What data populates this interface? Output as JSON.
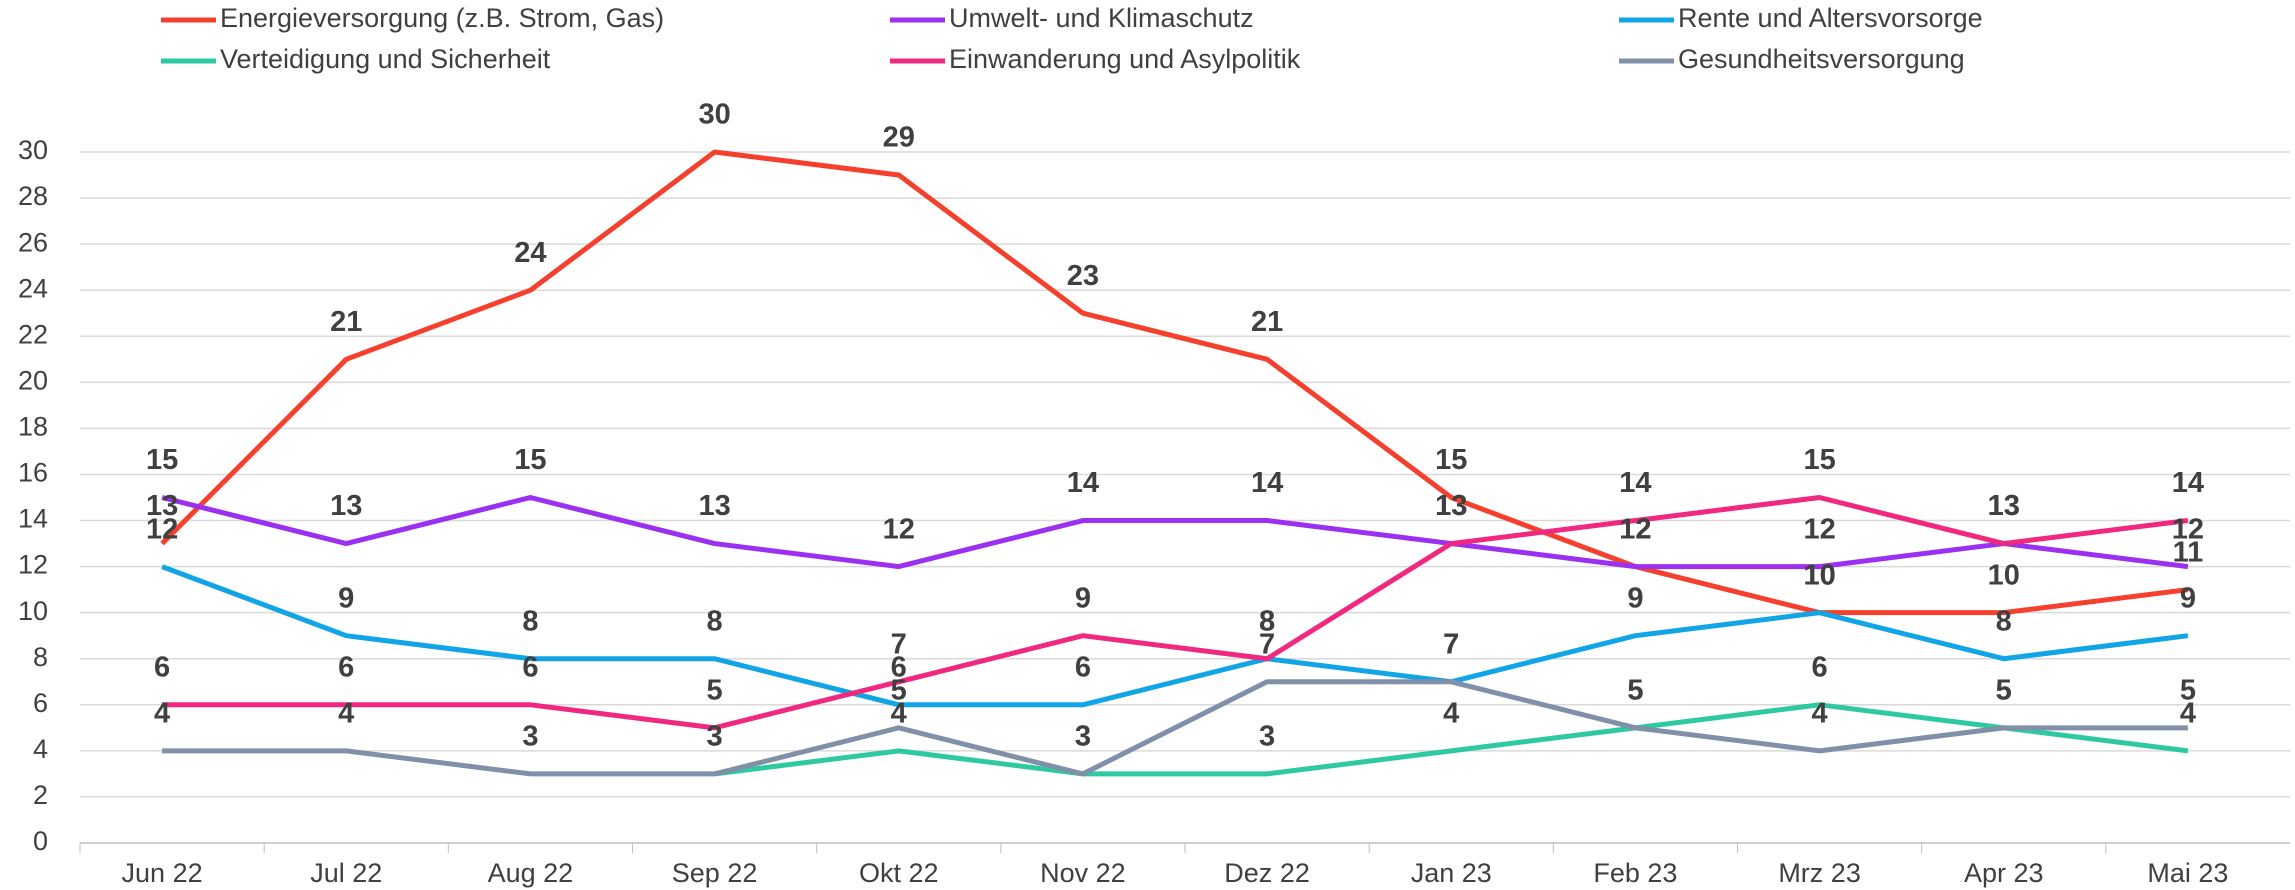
{
  "chart_data": {
    "type": "line",
    "categories": [
      "Jun 22",
      "Jul 22",
      "Aug 22",
      "Sep 22",
      "Okt 22",
      "Nov 22",
      "Dez 22",
      "Jan 23",
      "Feb 23",
      "Mrz 23",
      "Apr 23",
      "Mai 23"
    ],
    "series": [
      {
        "name": "Energieversorgung (z.B. Strom, Gas)",
        "color": "#f4402c",
        "values": [
          13,
          21,
          24,
          30,
          29,
          23,
          21,
          15,
          12,
          10,
          10,
          11
        ]
      },
      {
        "name": "Umwelt- und Klimaschutz",
        "color": "#9b30f0",
        "values": [
          15,
          13,
          15,
          13,
          12,
          14,
          14,
          13,
          12,
          12,
          13,
          12
        ]
      },
      {
        "name": "Rente und Altersvorsorge",
        "color": "#12a5e6",
        "values": [
          12,
          9,
          8,
          8,
          6,
          6,
          8,
          7,
          9,
          10,
          8,
          9
        ]
      },
      {
        "name": "Verteidigung und Sicherheit",
        "color": "#2ec9a0",
        "values": [
          null,
          null,
          null,
          3,
          4,
          3,
          3,
          4,
          5,
          6,
          5,
          4
        ]
      },
      {
        "name": "Einwanderung und Asylpolitik",
        "color": "#f0287f",
        "values": [
          6,
          6,
          6,
          5,
          7,
          9,
          8,
          13,
          14,
          15,
          13,
          14
        ]
      },
      {
        "name": "Gesundheitsversorgung",
        "color": "#8090a8",
        "values": [
          4,
          4,
          3,
          3,
          5,
          3,
          7,
          7,
          5,
          4,
          5,
          5
        ]
      }
    ],
    "ylim": [
      0,
      30
    ],
    "yticks": [
      0,
      2,
      4,
      6,
      8,
      10,
      12,
      14,
      16,
      18,
      20,
      22,
      24,
      26,
      28,
      30
    ],
    "grid": true,
    "legend": "top"
  }
}
